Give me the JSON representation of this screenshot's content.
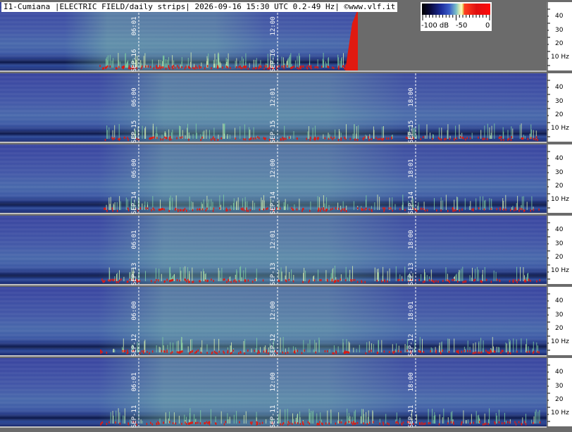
{
  "header": {
    "title": "I1-Cumiana |ELECTRIC FIELD/daily strips| 2026-09-16 15:30 UTC 0.2-49 Hz| ©www.vlf.it"
  },
  "legend": {
    "labels": [
      "-100 dB",
      "-50",
      "0"
    ]
  },
  "axis": {
    "ticks": [
      "40",
      "30",
      "20",
      "",
      "10 Hz"
    ]
  },
  "strips": [
    {
      "date": "SEP-16",
      "times": [
        "06:01",
        "12:00"
      ],
      "partial": true
    },
    {
      "date": "SEP-15",
      "times": [
        "06:00",
        "12:01",
        "18:00"
      ]
    },
    {
      "date": "SEP-14",
      "times": [
        "06:00",
        "12:00",
        "18:01"
      ]
    },
    {
      "date": "SEP-13",
      "times": [
        "06:01",
        "12:01",
        "18:00"
      ]
    },
    {
      "date": "SEP-12",
      "times": [
        "06:00",
        "12:00",
        "18:01"
      ]
    },
    {
      "date": "SEP-11",
      "times": [
        "06:01",
        "12:00",
        "18:00"
      ]
    }
  ],
  "colors": {
    "background_gray": "#6b6b6b",
    "spectrogram_blue": "#3a4aa0",
    "noise_green": "#8fd0a0",
    "burst_red": "#e01a10"
  }
}
